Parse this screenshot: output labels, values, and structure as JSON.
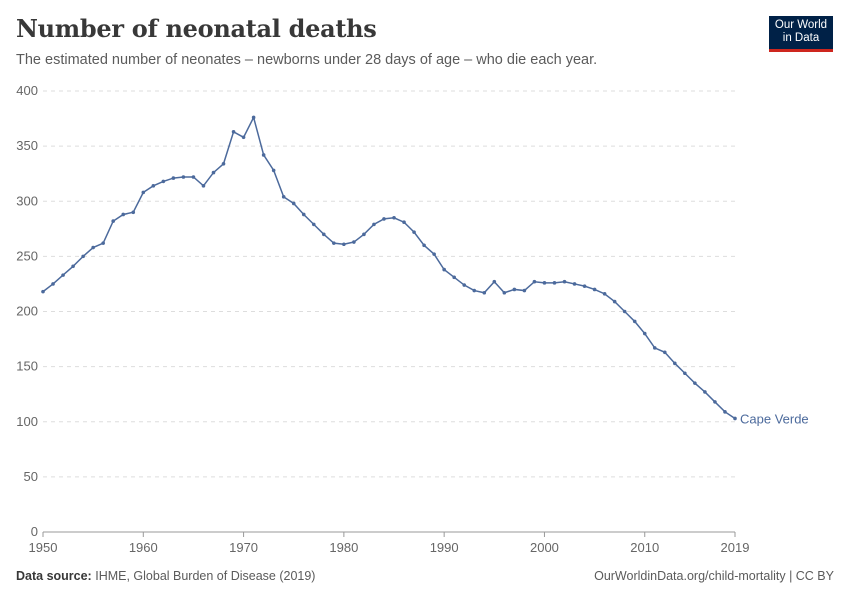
{
  "header": {
    "title": "Number of neonatal deaths",
    "subtitle": "The estimated number of neonates – newborns under 28 days of age – who die each year.",
    "logo": "Our World in Data"
  },
  "footer": {
    "source_label": "Data source:",
    "source": "IHME, Global Burden of Disease (2019)",
    "link": "OurWorldinData.org/child-mortality | CC BY"
  },
  "chart_data": {
    "type": "line",
    "title": "Number of neonatal deaths",
    "xlabel": "",
    "ylabel": "",
    "xlim": [
      1950,
      2019
    ],
    "ylim": [
      0,
      400
    ],
    "x_ticks": [
      "1950",
      "1960",
      "1970",
      "1980",
      "1990",
      "2000",
      "2010",
      "2019"
    ],
    "y_ticks": [
      "0",
      "50",
      "100",
      "150",
      "200",
      "250",
      "300",
      "350",
      "400"
    ],
    "grid": "horizontal dashed",
    "color": "#4c6a9c",
    "series": [
      {
        "name": "Cape Verde",
        "x": [
          1950,
          1951,
          1952,
          1953,
          1954,
          1955,
          1956,
          1957,
          1958,
          1959,
          1960,
          1961,
          1962,
          1963,
          1964,
          1965,
          1966,
          1967,
          1968,
          1969,
          1970,
          1971,
          1972,
          1973,
          1974,
          1975,
          1976,
          1977,
          1978,
          1979,
          1980,
          1981,
          1982,
          1983,
          1984,
          1985,
          1986,
          1987,
          1988,
          1989,
          1990,
          1991,
          1992,
          1993,
          1994,
          1995,
          1996,
          1997,
          1998,
          1999,
          2000,
          2001,
          2002,
          2003,
          2004,
          2005,
          2006,
          2007,
          2008,
          2009,
          2010,
          2011,
          2012,
          2013,
          2014,
          2015,
          2016,
          2017,
          2018,
          2019
        ],
        "values": [
          218,
          225,
          233,
          241,
          250,
          258,
          262,
          282,
          288,
          290,
          308,
          314,
          318,
          321,
          322,
          322,
          314,
          326,
          334,
          363,
          358,
          376,
          342,
          328,
          304,
          298,
          288,
          279,
          270,
          262,
          261,
          263,
          270,
          279,
          284,
          285,
          281,
          272,
          260,
          252,
          238,
          231,
          224,
          219,
          217,
          227,
          217,
          220,
          219,
          227,
          226,
          226,
          227,
          225,
          223,
          220,
          216,
          209,
          200,
          191,
          180,
          167,
          163,
          153,
          144,
          135,
          127,
          118,
          109,
          103
        ]
      }
    ]
  }
}
